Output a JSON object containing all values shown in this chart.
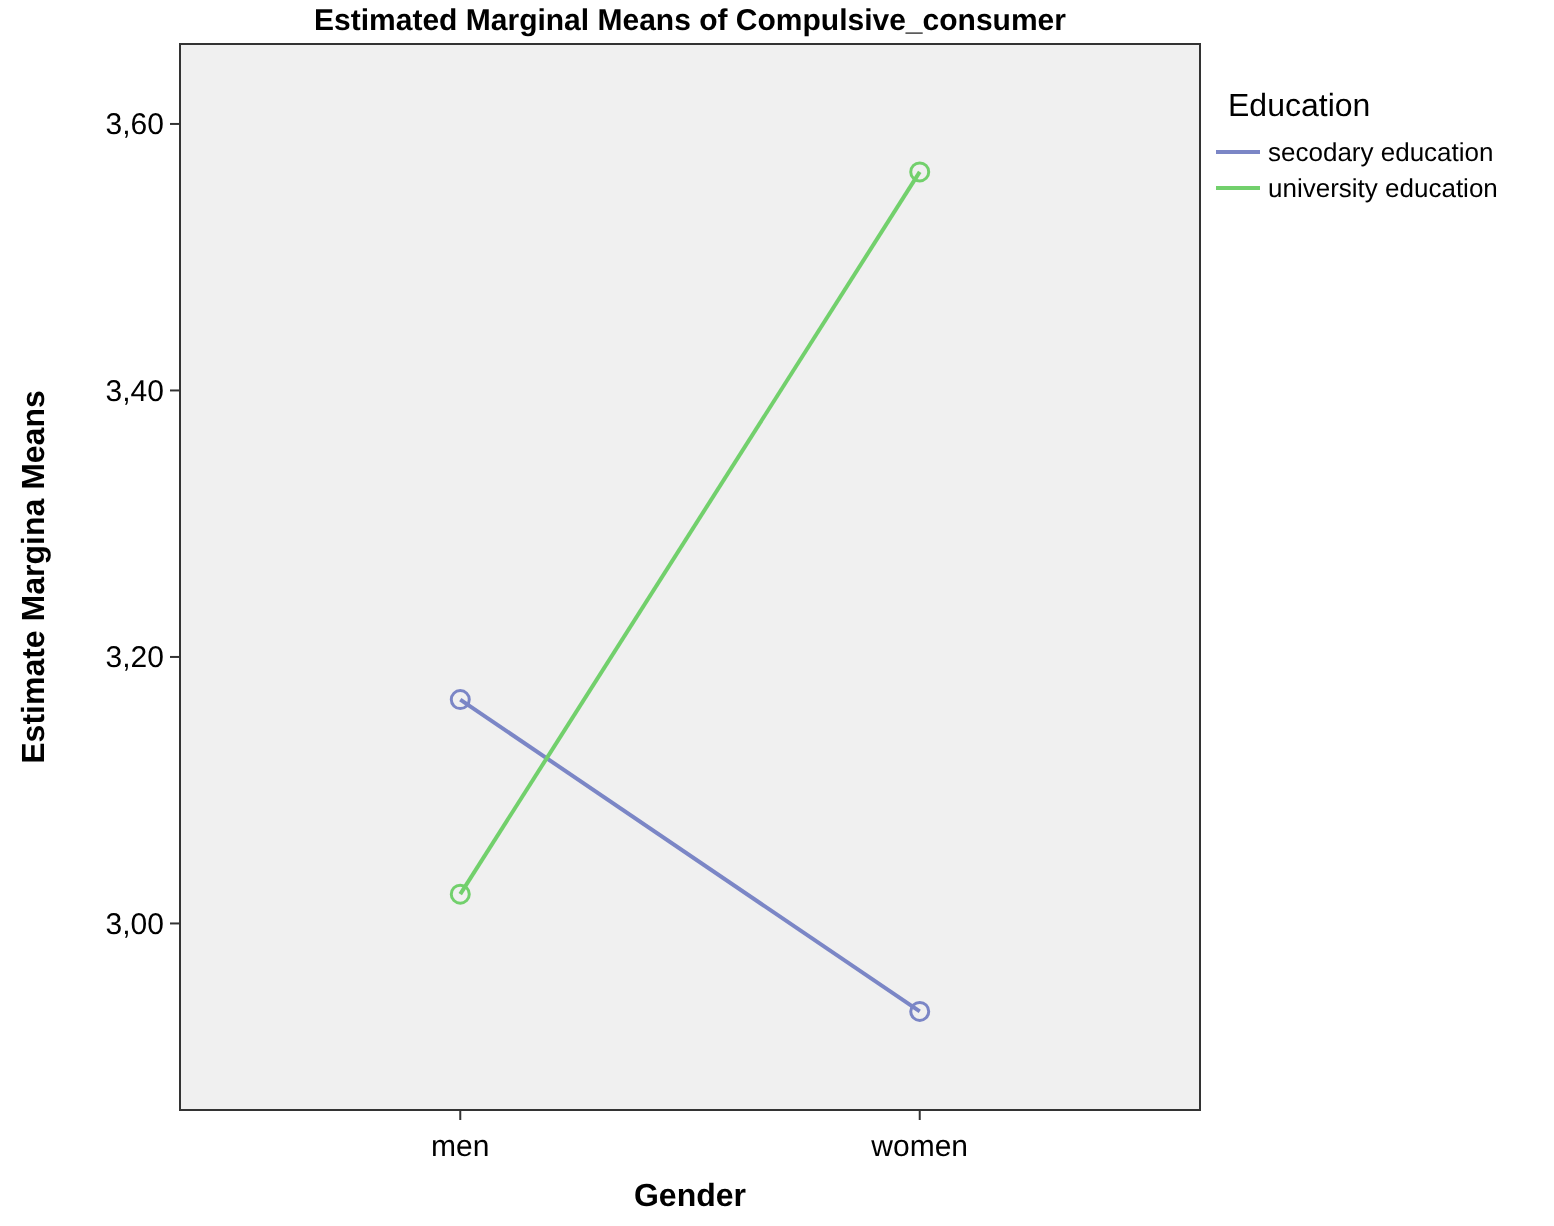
{
  "chart_data": {
    "type": "line",
    "title": "Estimated Marginal Means of Compulsive_consumer",
    "xlabel": "Gender",
    "ylabel": "Estimate Margina Means",
    "legend_title": "Education",
    "categories": [
      "men",
      "women"
    ],
    "series": [
      {
        "name": "secodary education",
        "color": "#7b86c6",
        "values": [
          3.168,
          2.934
        ]
      },
      {
        "name": "university education",
        "color": "#72d06c",
        "values": [
          3.022,
          3.564
        ]
      }
    ],
    "ylim": [
      2.86,
      3.66
    ],
    "yticks": [
      {
        "value": 3.0,
        "label": "3,00"
      },
      {
        "value": 3.2,
        "label": "3,20"
      },
      {
        "value": 3.4,
        "label": "3,40"
      },
      {
        "value": 3.6,
        "label": "3,60"
      }
    ],
    "grid": false,
    "legend": "top right",
    "marker": "circle",
    "line_style": "solid"
  }
}
